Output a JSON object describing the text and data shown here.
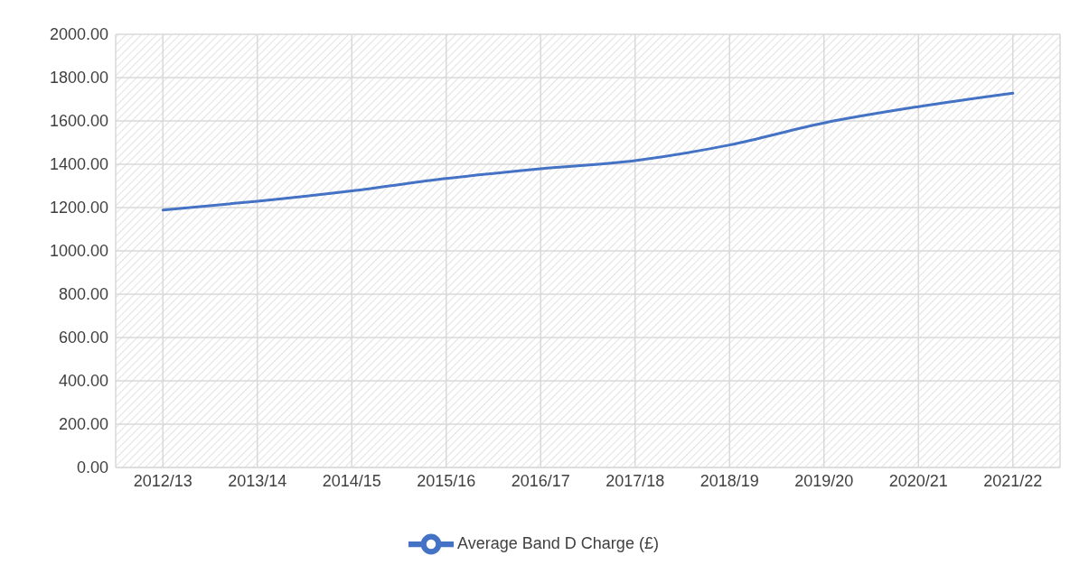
{
  "chart_data": {
    "type": "line",
    "categories": [
      "2012/13",
      "2013/14",
      "2014/15",
      "2015/16",
      "2016/17",
      "2017/18",
      "2018/19",
      "2019/20",
      "2020/21",
      "2021/22"
    ],
    "series": [
      {
        "name": "Average Band D Charge (£)",
        "color": "#4472c4",
        "values": [
          1189,
          1229,
          1277,
          1334,
          1379,
          1417,
          1489,
          1591,
          1666,
          1728
        ]
      }
    ],
    "ylim": [
      0,
      2000
    ],
    "yticks": [
      {
        "value": 0,
        "label": "0.00"
      },
      {
        "value": 200,
        "label": "200.00"
      },
      {
        "value": 400,
        "label": "400.00"
      },
      {
        "value": 600,
        "label": "600.00"
      },
      {
        "value": 800,
        "label": "800.00"
      },
      {
        "value": 1000,
        "label": "1000.00"
      },
      {
        "value": 1200,
        "label": "1200.00"
      },
      {
        "value": 1400,
        "label": "1400.00"
      },
      {
        "value": 1600,
        "label": "1600.00"
      },
      {
        "value": 1800,
        "label": "1800.00"
      },
      {
        "value": 2000,
        "label": "2000.00"
      }
    ],
    "grid": true,
    "legend": "bottom",
    "marker": "none",
    "line_style": "solid"
  }
}
